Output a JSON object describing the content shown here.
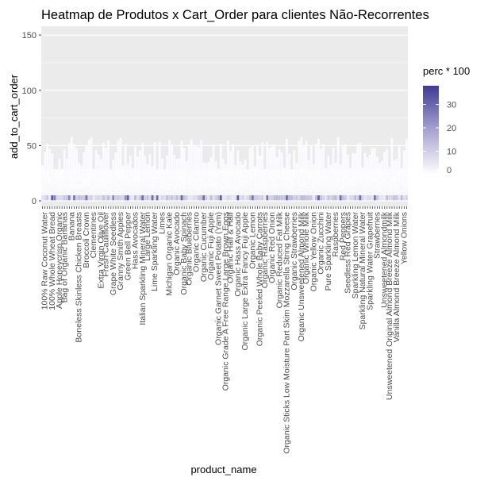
{
  "chart_data": {
    "type": "heatmap",
    "title": "Heatmap de Produtos x Cart_Order para clientes Não-Recorrentes",
    "xlabel": "product_name",
    "ylabel": "add_to_cart_order",
    "ylim": [
      0,
      155
    ],
    "y_ticks": [
      0,
      50,
      100,
      150
    ],
    "y_tick_labels": [
      "0",
      "50",
      "100",
      "150"
    ],
    "grid": true,
    "legend": {
      "title": "perc * 100",
      "position": "right",
      "range": [
        0,
        38
      ],
      "ticks": [
        0,
        10,
        20,
        30
      ],
      "tick_labels": [
        "0",
        "10",
        "20",
        "30"
      ],
      "low_color": "#ffffff",
      "high_color": "#3f3b94"
    },
    "x_labels": [
      "100% Raw Coconut Water",
      "100% Whole Wheat Bread",
      "Apple Honeycrisp Organic",
      "Bag of Organic Bananas",
      "Banana",
      "Boneless Skinless Chicken Breasts",
      "Broccoli Crown",
      "Clementines",
      "Extra Virgin Olive Oil",
      "Fresh Cauliflower",
      "Grape White Seedless",
      "Granny Smith Apples",
      "Green Bell Pepper",
      "Hass Avocados",
      "Italian Sparkling Mineral Water",
      "Large Lemon",
      "Lime Sparkling Water",
      "Limes",
      "Michigan Organic Kale",
      "Organic Avocado",
      "Organic Baby Spinach",
      "Organic Blueberries",
      "Organic Cilantro",
      "Organic Cucumber",
      "Organic Fuji Apple",
      "Organic Garnet Sweet Potato (Yam)",
      "Organic Grade A Free Range Large Brown Eggs",
      "Organic Half & Half",
      "Organic Hass Avocado",
      "Organic Large Extra Fancy Fuji Apple",
      "Organic Lemon",
      "Organic Peeled Whole Baby Carrots",
      "Organic Raspberries",
      "Organic Red Onion",
      "Organic Reduced Fat Milk",
      "Organic Sticks Low Moisture Part Skim Mozzarella String Cheese",
      "Organic Strawberries",
      "Organic Unsweetened Almond Milk",
      "Organic Whole Milk",
      "Organic Yellow Onion",
      "Organic Zucchini",
      "Pure Sparkling Water",
      "Raspberries",
      "Red Peppers",
      "Seedless Red Grapes",
      "Sparkling Lemon Water",
      "Sparkling Natural Mineral Water",
      "Sparkling Water Grapefruit",
      "Strawberries",
      "Unsweetened Almondmilk",
      "Unsweetened Original Almond Breeze Almond Milk",
      "Vanilla Almond Breeze Almond Milk",
      "Yellow Onions"
    ]
  }
}
